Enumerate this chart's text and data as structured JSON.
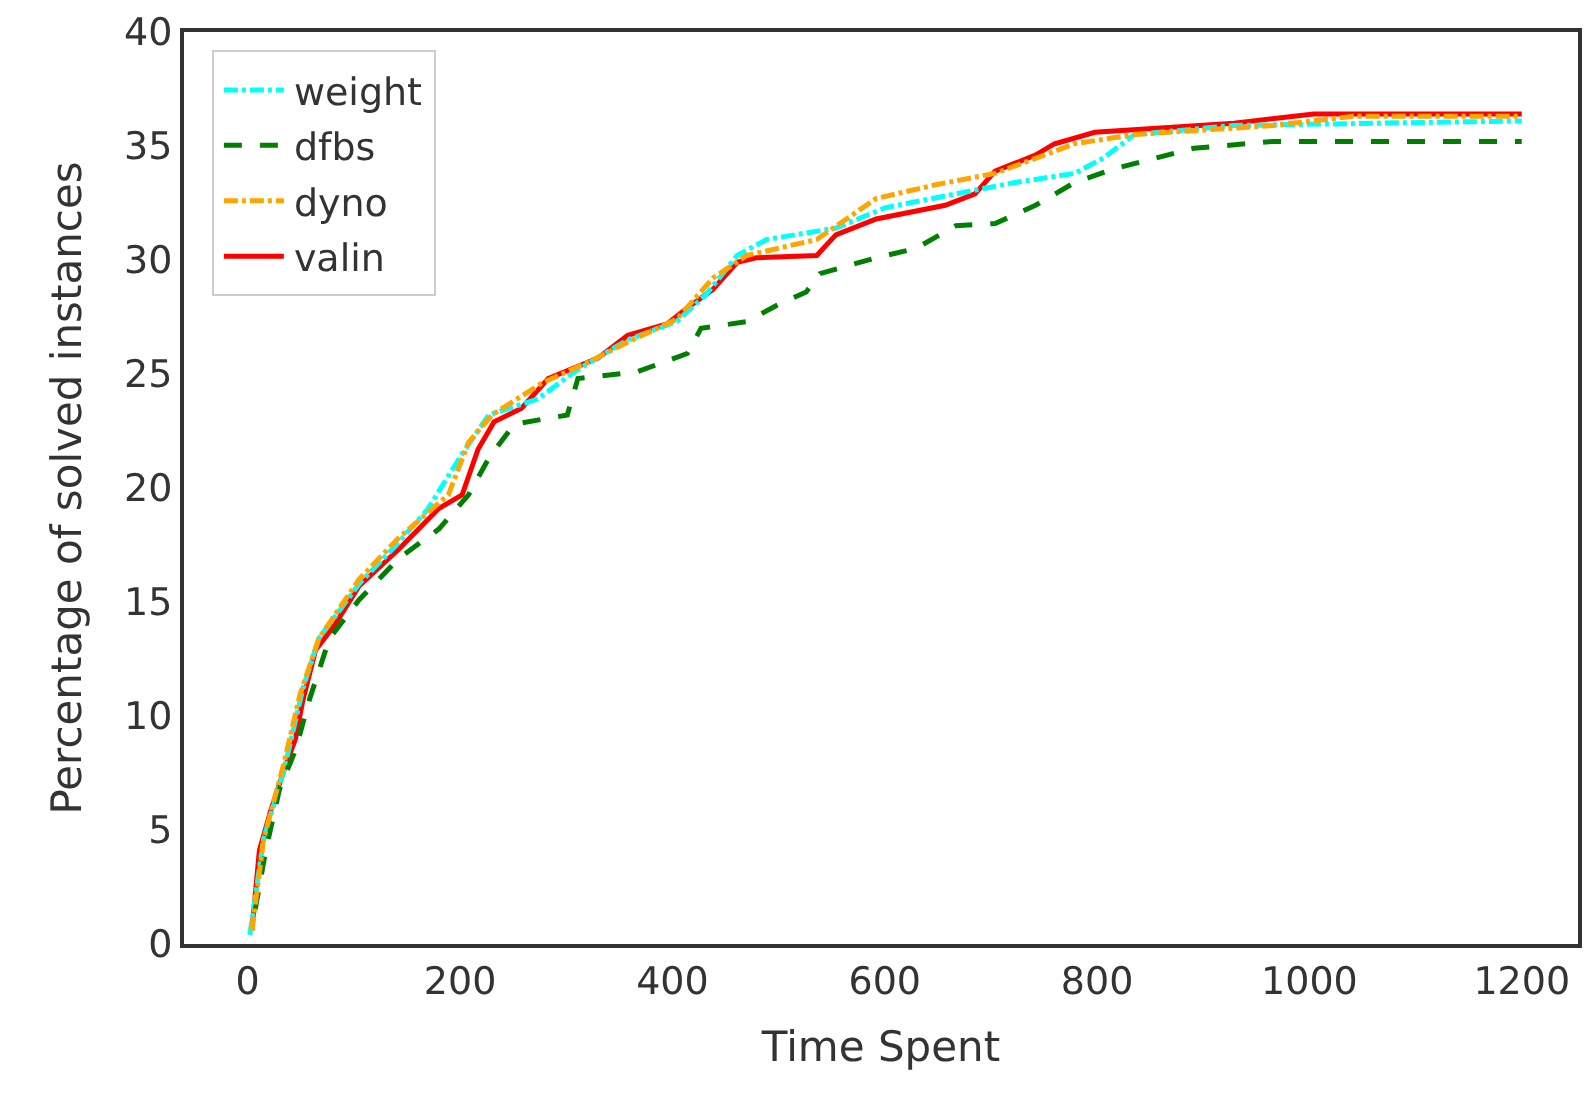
{
  "chart_data": {
    "type": "line",
    "xlabel": "Time Spent",
    "ylabel": "Percentage of solved instances",
    "xlim": [
      -60,
      1253
    ],
    "xticks": [
      0,
      200,
      400,
      600,
      800,
      1000,
      1200
    ],
    "ylim": [
      0,
      40
    ],
    "yticks": [
      0,
      5,
      10,
      15,
      20,
      25,
      30,
      35,
      40
    ],
    "legend": "top left",
    "marker": "none",
    "series": [
      {
        "name": "weight",
        "color": "#00ffff",
        "line_style": "dashdot",
        "x": [
          2,
          15,
          34,
          52,
          67,
          105,
          142,
          170,
          202,
          227,
          273,
          311,
          358,
          404,
          432,
          461,
          489,
          554,
          601,
          667,
          723,
          779,
          807,
          835,
          929,
          1200
        ],
        "values": [
          0.4,
          4.6,
          7.6,
          11.2,
          13.4,
          15.8,
          17.6,
          19.1,
          21.5,
          23.2,
          23.9,
          25.2,
          26.5,
          27.3,
          28.5,
          30.2,
          30.9,
          31.4,
          32.3,
          32.9,
          33.4,
          33.8,
          34.5,
          35.5,
          35.9,
          36.1
        ]
      },
      {
        "name": "dfbs",
        "color": "#008000",
        "line_style": "dashed",
        "x": [
          7,
          17,
          30,
          45,
          58,
          77,
          105,
          142,
          180,
          208,
          227,
          251,
          301,
          311,
          367,
          414,
          427,
          470,
          498,
          526,
          539,
          592,
          629,
          667,
          704,
          742,
          779,
          816,
          891,
          966,
          1200
        ],
        "values": [
          1.5,
          4.1,
          6.8,
          8.5,
          10.7,
          13.4,
          15.1,
          16.9,
          18.2,
          19.7,
          21.3,
          22.8,
          23.2,
          24.8,
          25.1,
          25.9,
          27.0,
          27.3,
          28.0,
          28.6,
          29.4,
          30.1,
          30.5,
          31.5,
          31.6,
          32.4,
          33.4,
          34.0,
          34.9,
          35.2,
          35.2
        ]
      },
      {
        "name": "dyno",
        "color": "#ffa500",
        "line_style": "dashdot",
        "x": [
          4,
          15,
          34,
          49,
          67,
          105,
          142,
          189,
          208,
          230,
          277,
          320,
          358,
          404,
          438,
          470,
          536,
          592,
          648,
          704,
          779,
          835,
          966,
          1041,
          1200
        ],
        "values": [
          0.6,
          4.6,
          7.9,
          10.9,
          13.4,
          16.0,
          17.8,
          19.7,
          22.0,
          23.2,
          24.6,
          25.5,
          26.4,
          27.4,
          29.2,
          30.2,
          30.9,
          32.7,
          33.3,
          33.8,
          35.1,
          35.5,
          35.9,
          36.3,
          36.3
        ]
      },
      {
        "name": "valin",
        "color": "#ff0000",
        "line_style": "solid",
        "x": [
          4,
          11,
          22,
          34,
          45,
          52,
          64,
          82,
          105,
          142,
          180,
          202,
          217,
          232,
          258,
          283,
          330,
          358,
          395,
          414,
          438,
          461,
          479,
          536,
          554,
          592,
          657,
          685,
          704,
          742,
          760,
          798,
          929,
          1004,
          1200
        ],
        "values": [
          0.6,
          4.1,
          5.9,
          7.6,
          9.0,
          10.7,
          12.9,
          14.0,
          15.7,
          17.3,
          19.1,
          19.7,
          21.7,
          22.9,
          23.5,
          24.8,
          25.7,
          26.7,
          27.2,
          27.9,
          28.7,
          29.9,
          30.1,
          30.2,
          31.1,
          31.8,
          32.4,
          32.9,
          33.9,
          34.6,
          35.1,
          35.6,
          36.0,
          36.4,
          36.4
        ]
      }
    ]
  }
}
